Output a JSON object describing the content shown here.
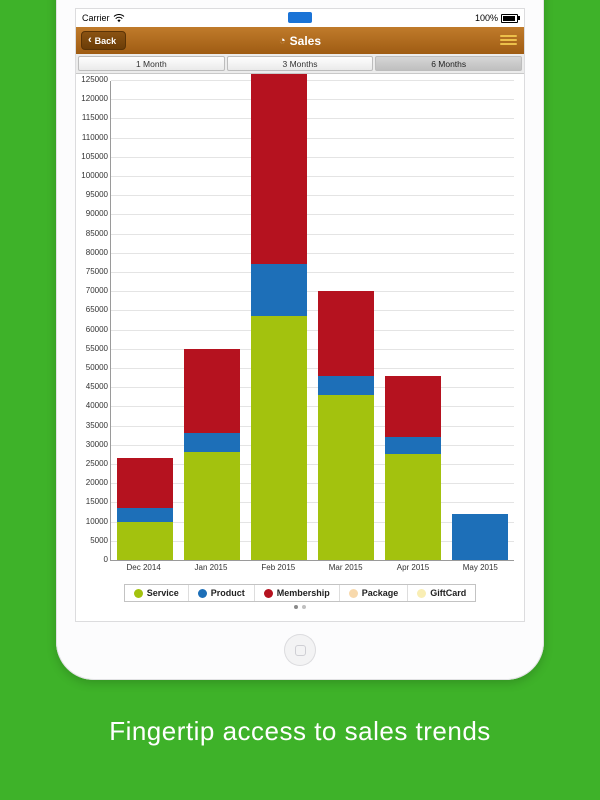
{
  "status_bar": {
    "carrier": "Carrier",
    "battery_pct": "100%"
  },
  "nav": {
    "back_label": "Back",
    "title": "Sales"
  },
  "segments": {
    "items": [
      "1 Month",
      "3 Months",
      "6 Months"
    ],
    "selected_index": 2
  },
  "caption": "Fingertip access to sales trends",
  "colors": {
    "background_green": "#3eb229",
    "navbar_orange": "#a86418",
    "back_button_brown": "#6b3d08",
    "hamburger_gold": "#ecc04a",
    "status_badge_blue": "#1a73d6"
  },
  "chart_data": {
    "type": "bar",
    "stacked": true,
    "title": "",
    "xlabel": "",
    "ylabel": "",
    "categories": [
      "Dec 2014",
      "Jan 2015",
      "Feb 2015",
      "Mar 2015",
      "Apr 2015",
      "May 2015"
    ],
    "series": [
      {
        "name": "Service",
        "color": "#a3c20e",
        "values": [
          10000,
          28000,
          63500,
          43000,
          27500,
          0
        ]
      },
      {
        "name": "Product",
        "color": "#1d6fb8",
        "values": [
          3500,
          5000,
          13500,
          5000,
          4500,
          12000
        ]
      },
      {
        "name": "Membership",
        "color": "#b5121f",
        "values": [
          13000,
          22000,
          49500,
          22000,
          16000,
          0
        ]
      },
      {
        "name": "Package",
        "color": "#f8d9ac",
        "values": [
          0,
          0,
          0,
          0,
          0,
          0
        ]
      },
      {
        "name": "GiftCard",
        "color": "#f9eeb4",
        "values": [
          0,
          0,
          0,
          0,
          0,
          0
        ]
      }
    ],
    "ylim": [
      0,
      125000
    ],
    "y_tick_step": 5000,
    "grid": true,
    "legend_position": "bottom"
  }
}
